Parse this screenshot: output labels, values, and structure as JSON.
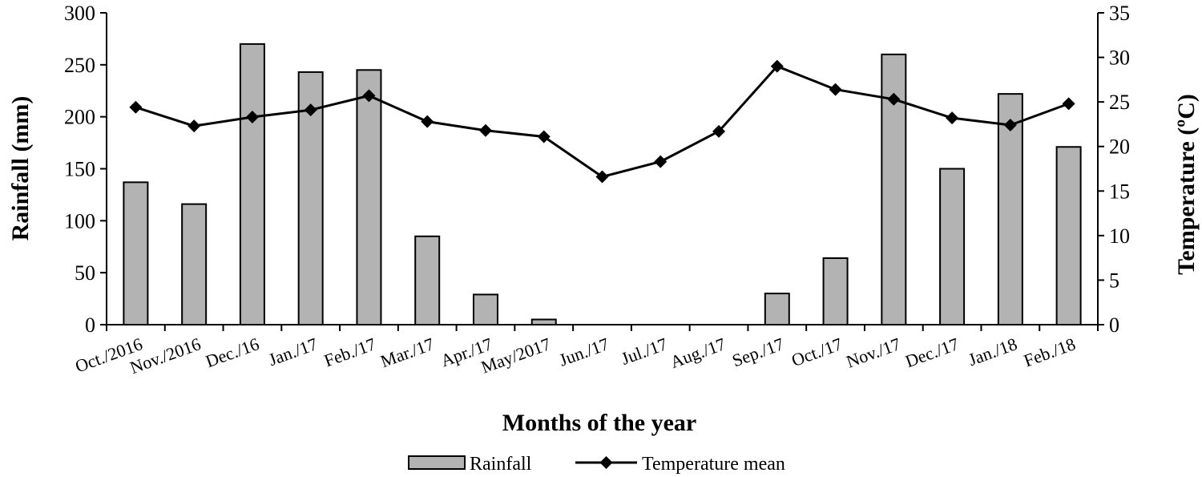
{
  "chart_data": {
    "type": "bar",
    "title": "",
    "xlabel": "Months of the year",
    "ylabel": "Rainfall (mm)",
    "y2label": "Temperature (ºC)",
    "categories": [
      "Oct./2016",
      "Nov./2016",
      "Dec./16",
      "Jan./17",
      "Feb./17",
      "Mar./17",
      "Apr./17",
      "May/2017",
      "Jun./17",
      "Jul./17",
      "Aug./17",
      "Sep./17",
      "Oct./17",
      "Nov./17",
      "Dec./17",
      "Jan./18",
      "Feb./18"
    ],
    "ylim": [
      0,
      300
    ],
    "yticks": [
      0,
      50,
      100,
      150,
      200,
      250,
      300
    ],
    "y2lim": [
      0,
      35
    ],
    "y2ticks": [
      0,
      5,
      10,
      15,
      20,
      25,
      30,
      35
    ],
    "grid": false,
    "legend_position": "bottom",
    "series": [
      {
        "name": "Rainfall",
        "type": "bar",
        "axis": "left",
        "color": "#b3b3b3",
        "values": [
          137,
          116,
          270,
          243,
          245,
          85,
          29,
          5,
          0,
          0,
          0,
          30,
          64,
          260,
          150,
          222,
          171
        ]
      },
      {
        "name": "Temperature mean",
        "type": "line",
        "axis": "right",
        "marker": "diamond",
        "color": "#000000",
        "values": [
          24.4,
          22.3,
          23.3,
          24.1,
          25.7,
          22.8,
          21.8,
          21.1,
          16.6,
          18.3,
          21.7,
          29.0,
          26.4,
          25.3,
          23.2,
          22.4,
          24.8
        ]
      }
    ]
  }
}
